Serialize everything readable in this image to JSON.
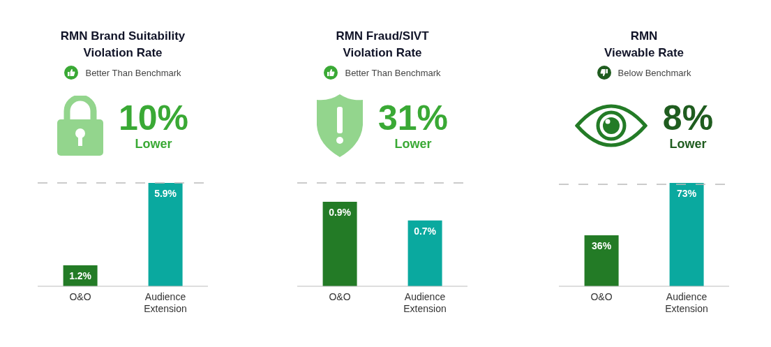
{
  "chart_data": [
    {
      "type": "bar",
      "title": "RMN Brand Suitability\nViolation Rate",
      "annotations": [
        "Better Than Benchmark",
        "10%",
        "Lower"
      ],
      "categories": [
        "O&O",
        "Audience Extension"
      ],
      "values": [
        1.2,
        5.9
      ],
      "colors": [
        "#237b26",
        "#0aa99f"
      ],
      "value_labels": [
        "1.2%",
        "5.9%"
      ],
      "ref_lines": [
        {
          "axis": "y",
          "value": 5.9,
          "color": "#bbbbbb",
          "line_style": "dashed"
        }
      ]
    },
    {
      "type": "bar",
      "title": "RMN Fraud/SIVT\nViolation Rate",
      "annotations": [
        "Better Than Benchmark",
        "31%",
        "Lower"
      ],
      "categories": [
        "O&O",
        "Audience Extension"
      ],
      "values": [
        0.9,
        0.7
      ],
      "colors": [
        "#237b26",
        "#0aa99f"
      ],
      "value_labels": [
        "0.9%",
        "0.7%"
      ],
      "ref_lines": [
        {
          "axis": "y",
          "value": 1.1,
          "color": "#bbbbbb",
          "line_style": "dashed"
        }
      ]
    },
    {
      "type": "bar",
      "title": "RMN\nViewable Rate",
      "annotations": [
        "Below Benchmark",
        "8%",
        "Lower"
      ],
      "categories": [
        "O&O",
        "Audience Extension"
      ],
      "values": [
        36,
        73
      ],
      "colors": [
        "#237b26",
        "#0aa99f"
      ],
      "value_labels": [
        "36%",
        "73%"
      ],
      "ref_lines": [
        {
          "axis": "y",
          "value": 72,
          "color": "#bbbbbb",
          "line_style": "dashed"
        }
      ]
    }
  ]
}
